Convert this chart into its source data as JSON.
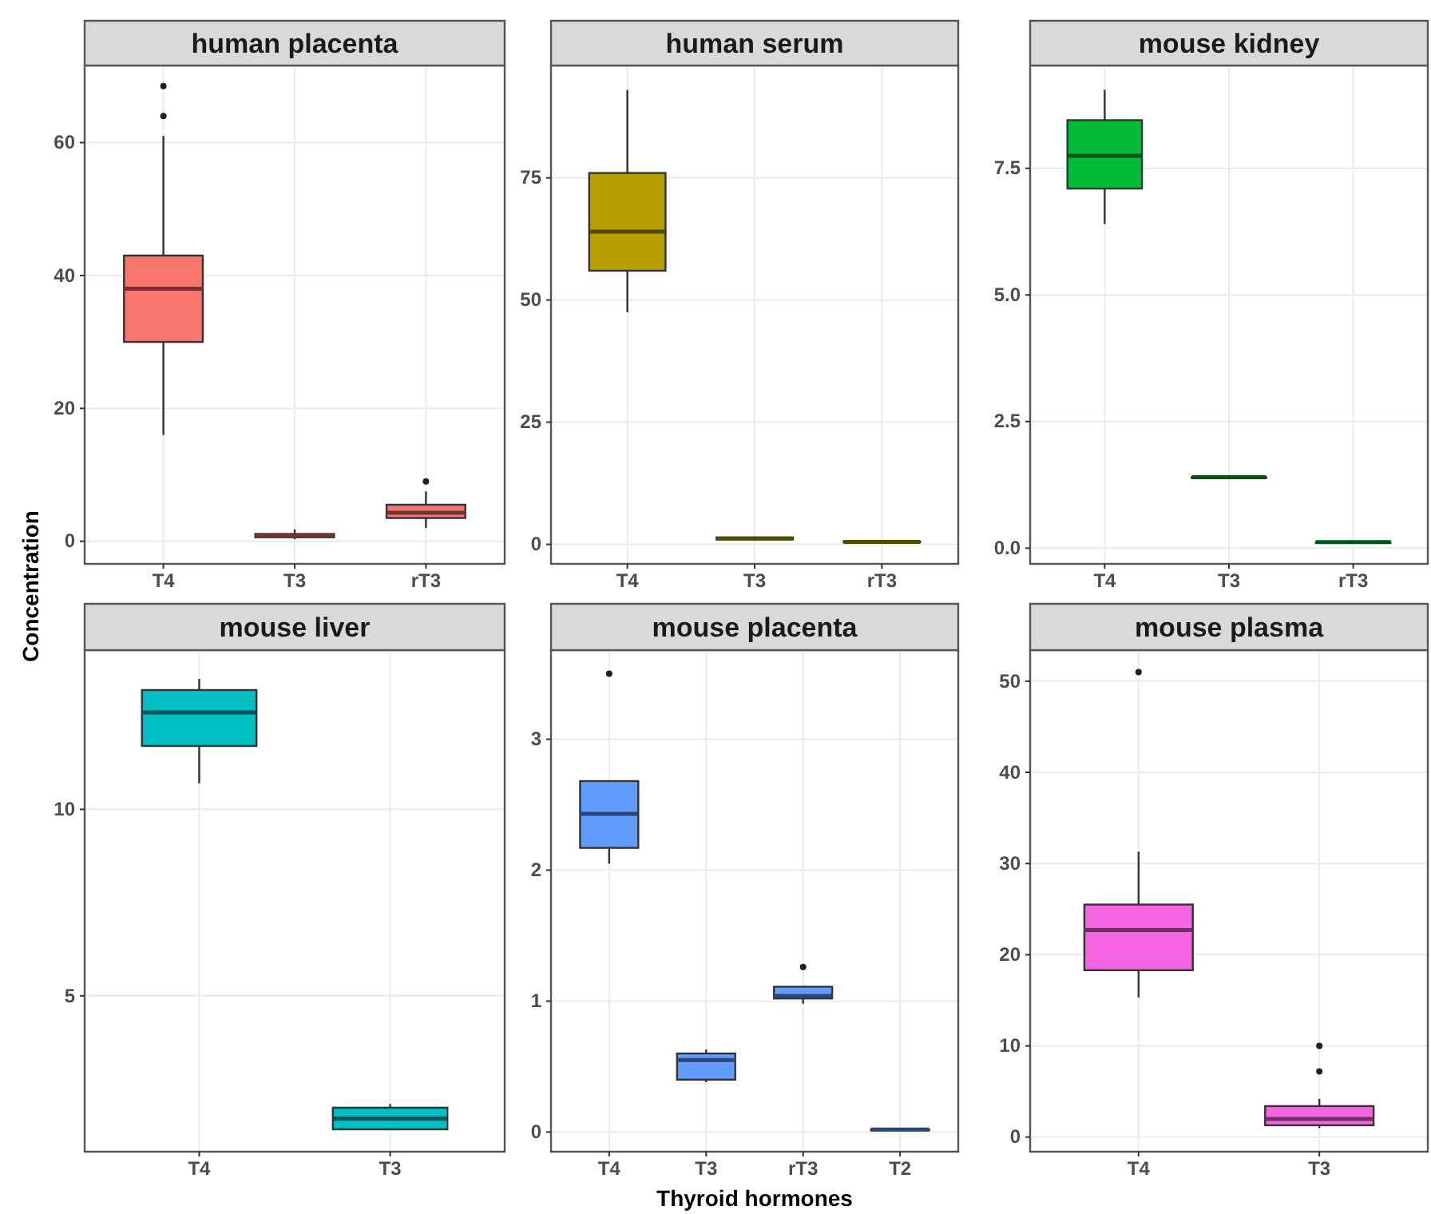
{
  "chart_data": [
    {
      "type": "box",
      "title": "human placenta",
      "ylabel": "Concentration",
      "categories": [
        "T4",
        "T3",
        "rT3"
      ],
      "ylim": [
        -3.4,
        71.6
      ],
      "yticks": [
        0,
        20,
        40,
        60
      ],
      "grid": true,
      "series": [
        {
          "color": "#f8766d",
          "boxes": [
            {
              "low": 16,
              "q1": 30,
              "median": 38,
              "q3": 43,
              "high": 61,
              "outliers": [
                64,
                68.5
              ]
            },
            {
              "low": 0.3,
              "q1": 0.6,
              "median": 0.9,
              "q3": 1.1,
              "high": 1.8
            },
            {
              "low": 2,
              "q1": 3.5,
              "median": 4.3,
              "q3": 5.5,
              "high": 7.5,
              "outliers": [
                9
              ]
            }
          ]
        }
      ]
    },
    {
      "type": "box",
      "title": "human serum",
      "categories": [
        "T4",
        "T3",
        "rT3"
      ],
      "ylim": [
        -4,
        98
      ],
      "yticks": [
        0,
        25,
        50,
        75
      ],
      "grid": true,
      "series": [
        {
          "color": "#b79f00",
          "boxes": [
            {
              "low": 47.5,
              "q1": 56,
              "median": 64,
              "q3": 76,
              "high": 93
            },
            {
              "low": 0.8,
              "q1": 1,
              "median": 1.2,
              "q3": 1.4,
              "high": 1.5
            },
            {
              "low": 0.3,
              "q1": 0.4,
              "median": 0.5,
              "q3": 0.6,
              "high": 0.7
            }
          ]
        }
      ]
    },
    {
      "type": "box",
      "title": "mouse kidney",
      "categories": [
        "T4",
        "T3",
        "rT3"
      ],
      "ylim": [
        -0.31,
        9.53
      ],
      "yticks": [
        {
          "value": 0,
          "label": "0.0"
        },
        {
          "value": 2.5,
          "label": "2.5"
        },
        {
          "value": 5,
          "label": "5.0"
        },
        {
          "value": 7.5,
          "label": "7.5"
        }
      ],
      "grid": true,
      "series": [
        {
          "color": "#00ba38",
          "boxes": [
            {
              "low": 6.4,
              "q1": 7.1,
              "median": 7.75,
              "q3": 8.45,
              "high": 9.05
            },
            {
              "low": 1.4,
              "q1": 1.4,
              "median": 1.4,
              "q3": 1.4,
              "high": 1.4
            },
            {
              "low": 0.12,
              "q1": 0.12,
              "median": 0.12,
              "q3": 0.12,
              "high": 0.12
            }
          ]
        }
      ]
    },
    {
      "type": "box",
      "title": "mouse liver",
      "categories": [
        "T4",
        "T3"
      ],
      "ylim": [
        0.82,
        14.27
      ],
      "yticks": [
        5,
        10
      ],
      "grid": true,
      "series": [
        {
          "color": "#00bfc4",
          "boxes": [
            {
              "low": 10.7,
              "q1": 11.7,
              "median": 12.6,
              "q3": 13.2,
              "high": 13.5
            },
            {
              "low": 1.42,
              "q1": 1.42,
              "median": 1.71,
              "q3": 2,
              "high": 2.1
            }
          ]
        }
      ]
    },
    {
      "type": "box",
      "title": "mouse placenta",
      "xlabel": "Thyroid hormones",
      "categories": [
        "T4",
        "T3",
        "rT3",
        "T2"
      ],
      "ylim": [
        -0.15,
        3.68
      ],
      "yticks": [
        0,
        1,
        2,
        3
      ],
      "grid": true,
      "series": [
        {
          "color": "#619cff",
          "boxes": [
            {
              "low": 2.05,
              "q1": 2.17,
              "median": 2.43,
              "q3": 2.68,
              "high": 2.68,
              "outliers": [
                3.5
              ]
            },
            {
              "low": 0.38,
              "q1": 0.4,
              "median": 0.55,
              "q3": 0.6,
              "high": 0.63
            },
            {
              "low": 0.98,
              "q1": 1.02,
              "median": 1.04,
              "q3": 1.11,
              "high": 1.11,
              "outliers": [
                1.26
              ]
            },
            {
              "low": 0.02,
              "q1": 0.02,
              "median": 0.02,
              "q3": 0.02,
              "high": 0.02
            }
          ]
        }
      ]
    },
    {
      "type": "box",
      "title": "mouse plasma",
      "categories": [
        "T4",
        "T3"
      ],
      "ylim": [
        -1.6,
        53.4
      ],
      "yticks": [
        0,
        10,
        20,
        30,
        40,
        50
      ],
      "grid": true,
      "series": [
        {
          "color": "#f564e3",
          "boxes": [
            {
              "low": 15.3,
              "q1": 18.3,
              "median": 22.7,
              "q3": 25.5,
              "high": 31.3,
              "outliers": [
                51
              ]
            },
            {
              "low": 1,
              "q1": 1.3,
              "median": 2,
              "q3": 3.4,
              "high": 4.2,
              "outliers": [
                7.2,
                10
              ]
            }
          ]
        }
      ]
    }
  ]
}
